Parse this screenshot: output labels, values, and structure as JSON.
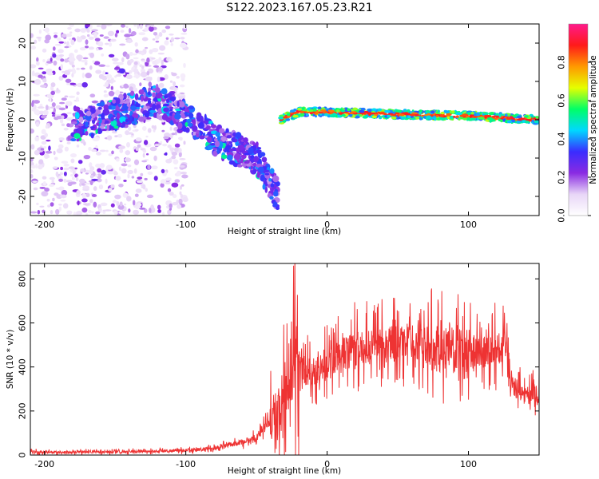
{
  "title": "S122.2023.167.05.23.R21",
  "chart_data": [
    {
      "type": "heatmap",
      "xlabel": "Height of straight line (km)",
      "ylabel": "Frequency (Hz)",
      "xlim": [
        -210,
        150
      ],
      "ylim": [
        -25,
        25
      ],
      "xticks": [
        -200,
        -100,
        0,
        100
      ],
      "yticks": [
        -20,
        -10,
        0,
        10,
        20
      ],
      "colorbar": {
        "label": "Normalized spectral amplitude",
        "range": [
          0,
          1
        ],
        "ticks": [
          "0.0",
          "0.2",
          "0.4",
          "0.6",
          "0.8"
        ],
        "tick_values": [
          0.0,
          0.2,
          0.4,
          0.6,
          0.8
        ],
        "colors": [
          "#ffffff",
          "#e8d6f7",
          "#8a2be2",
          "#3a2cff",
          "#00d8ff",
          "#00ff66",
          "#e6ff00",
          "#ff9900",
          "#ff1a1a",
          "#ff1a8c"
        ]
      },
      "features": [
        {
          "segment": "diffuse-noise",
          "x_range": [
            -210,
            -100
          ],
          "freq_range": [
            -25,
            25
          ]
        },
        {
          "segment": "ramp",
          "x": [
            -180,
            -120,
            -100,
            -75,
            -50,
            -35
          ],
          "freq": [
            -2,
            5,
            1,
            -6,
            -10,
            -20
          ]
        },
        {
          "segment": "steady-line",
          "x": [
            -33,
            -20,
            0,
            40,
            100,
            150
          ],
          "freq": [
            0,
            2,
            2,
            1.5,
            1,
            0
          ]
        }
      ]
    },
    {
      "type": "line",
      "xlabel": "Height of straight line (km)",
      "ylabel": "SNR (10 * v/v)",
      "xlim": [
        -210,
        150
      ],
      "ylim": [
        0,
        870
      ],
      "xticks": [
        -200,
        -100,
        0,
        100
      ],
      "yticks": [
        0,
        200,
        400,
        600,
        800
      ],
      "color": "#ee3333",
      "x": [
        -210,
        -190,
        -170,
        -150,
        -130,
        -110,
        -100,
        -90,
        -80,
        -70,
        -60,
        -50,
        -45,
        -40,
        -35,
        -30,
        -25,
        -22,
        -20,
        -15,
        -10,
        -5,
        0,
        5,
        10,
        20,
        30,
        40,
        50,
        60,
        70,
        80,
        90,
        100,
        110,
        120,
        128,
        130,
        135,
        140,
        150
      ],
      "values": [
        15,
        12,
        14,
        13,
        16,
        20,
        22,
        25,
        30,
        45,
        60,
        80,
        120,
        160,
        200,
        260,
        340,
        500,
        420,
        380,
        360,
        400,
        420,
        430,
        450,
        470,
        500,
        520,
        510,
        520,
        500,
        480,
        470,
        480,
        470,
        490,
        480,
        310,
        300,
        270,
        280
      ]
    }
  ]
}
